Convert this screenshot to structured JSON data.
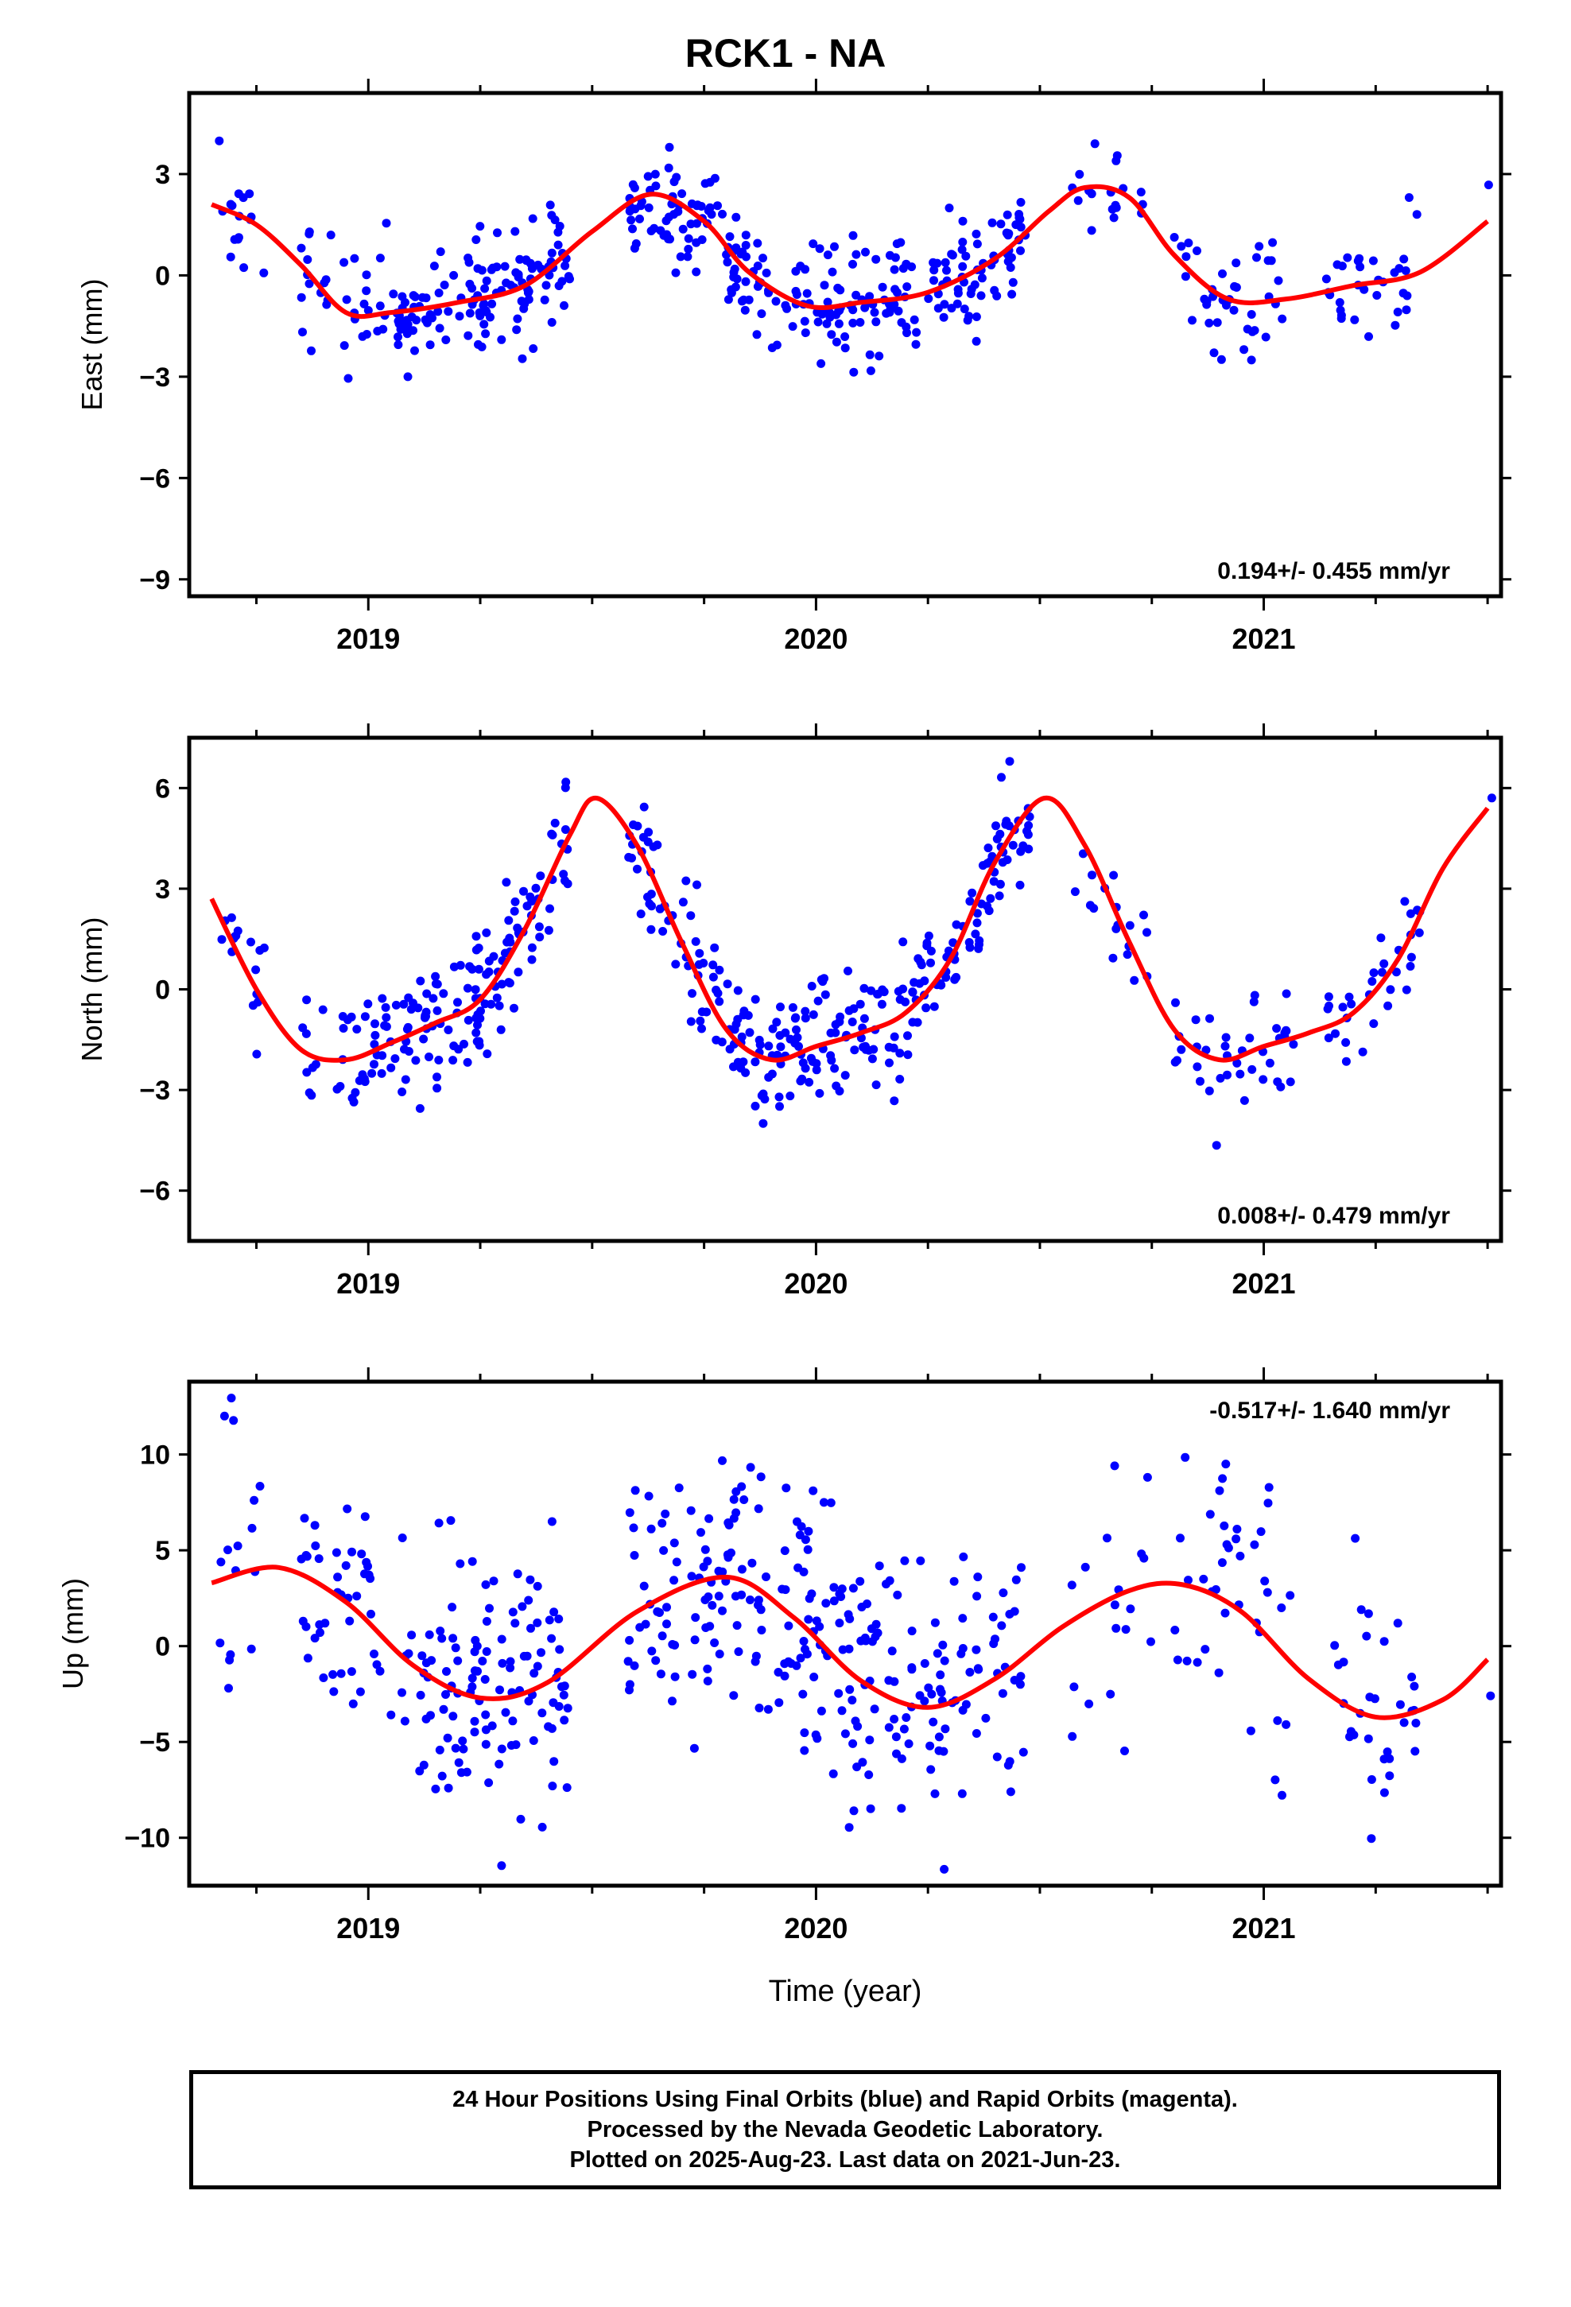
{
  "title": "RCK1 - NA",
  "footer": {
    "line1": "24 Hour Positions Using Final Orbits (blue) and Rapid Orbits (magenta).",
    "line2": "Processed by the Nevada Geodetic Laboratory.",
    "line3": "Plotted on 2025-Aug-23. Last data on 2021-Jun-23."
  },
  "colors": {
    "points": "#0000ff",
    "model": "#ff0000",
    "axes": "#000000"
  },
  "chart_data": [
    {
      "type": "scatter",
      "ylabel": "East (mm)",
      "xlabel": "",
      "xlim": [
        2018.6,
        2021.53
      ],
      "ylim": [
        -9.5,
        5.4
      ],
      "yticks": [
        3,
        0,
        -3,
        -6,
        -9
      ],
      "xticks": [
        2019,
        2020,
        2021
      ],
      "rate": "0.194+/- 0.455 mm/yr",
      "rate_position": "bottom-right",
      "model_curve": {
        "x": [
          2018.65,
          2018.75,
          2018.85,
          2018.95,
          2019.05,
          2019.2,
          2019.35,
          2019.5,
          2019.63,
          2019.75,
          2019.85,
          2019.98,
          2020.1,
          2020.25,
          2020.4,
          2020.52,
          2020.6,
          2020.7,
          2020.8,
          2020.92,
          2021.05,
          2021.2,
          2021.35,
          2021.5
        ],
        "y": [
          2.1,
          1.5,
          0.3,
          -1.1,
          -1.1,
          -0.8,
          -0.3,
          1.3,
          2.4,
          1.6,
          0.1,
          -0.9,
          -0.8,
          -0.5,
          0.5,
          1.9,
          2.6,
          2.3,
          0.6,
          -0.7,
          -0.7,
          -0.3,
          0.1,
          1.6
        ]
      }
    },
    {
      "type": "scatter",
      "ylabel": "North (mm)",
      "xlabel": "",
      "xlim": [
        2018.6,
        2021.53
      ],
      "ylim": [
        -7.5,
        7.5
      ],
      "yticks": [
        6,
        3,
        0,
        -3,
        -6
      ],
      "xticks": [
        2019,
        2020,
        2021
      ],
      "rate": "0.008+/- 0.479 mm/yr",
      "rate_position": "bottom-right",
      "model_curve": {
        "x": [
          2018.65,
          2018.75,
          2018.85,
          2018.95,
          2019.05,
          2019.15,
          2019.25,
          2019.35,
          2019.45,
          2019.51,
          2019.6,
          2019.7,
          2019.8,
          2019.9,
          2020.0,
          2020.1,
          2020.2,
          2020.3,
          2020.4,
          2020.51,
          2020.6,
          2020.7,
          2020.8,
          2020.9,
          2021.0,
          2021.1,
          2021.2,
          2021.3,
          2021.4,
          2021.5
        ],
        "y": [
          2.7,
          0.0,
          -1.8,
          -2.1,
          -1.6,
          -1.0,
          -0.3,
          1.8,
          4.6,
          5.7,
          4.3,
          1.4,
          -1.2,
          -2.1,
          -1.7,
          -1.3,
          -0.7,
          0.9,
          3.8,
          5.7,
          4.3,
          1.4,
          -1.2,
          -2.1,
          -1.7,
          -1.3,
          -0.7,
          0.9,
          3.6,
          5.4
        ]
      }
    },
    {
      "type": "scatter",
      "ylabel": "Up (mm)",
      "xlabel": "Time (year)",
      "xlim": [
        2018.6,
        2021.53
      ],
      "ylim": [
        -12.5,
        13.8
      ],
      "yticks": [
        10,
        5,
        0,
        -5,
        -10
      ],
      "xticks": [
        2019,
        2020,
        2021
      ],
      "rate": "-0.517+/- 1.640 mm/yr",
      "rate_position": "top-right",
      "model_curve": {
        "x": [
          2018.65,
          2018.8,
          2018.95,
          2019.1,
          2019.25,
          2019.4,
          2019.6,
          2019.8,
          2019.95,
          2020.1,
          2020.25,
          2020.4,
          2020.55,
          2020.7,
          2020.82,
          2020.95,
          2021.1,
          2021.25,
          2021.4,
          2021.5
        ],
        "y": [
          3.3,
          4.1,
          2.3,
          -1.0,
          -2.7,
          -1.9,
          1.8,
          3.6,
          1.5,
          -1.8,
          -3.2,
          -1.7,
          1.0,
          2.9,
          3.2,
          1.8,
          -1.7,
          -3.7,
          -2.8,
          -0.7
        ]
      }
    }
  ]
}
